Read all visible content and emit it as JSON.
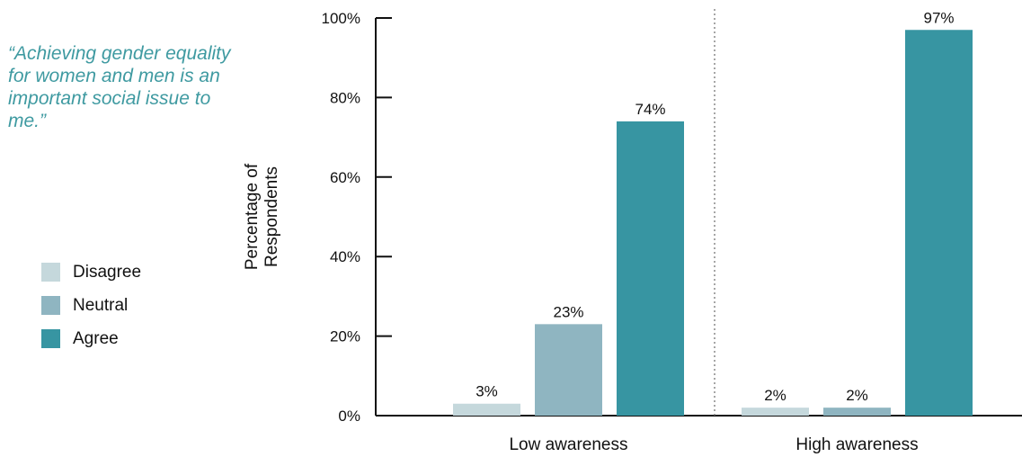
{
  "quote": "“Achieving gender equality for women and men is an important social issue to me.”",
  "legend": [
    {
      "label": "Disagree",
      "color": "#c5d8dc"
    },
    {
      "label": "Neutral",
      "color": "#8fb5c1"
    },
    {
      "label": "Agree",
      "color": "#3795a2"
    }
  ],
  "chart_data": {
    "type": "bar",
    "categories": [
      "Low awareness",
      "High awareness"
    ],
    "series": [
      {
        "name": "Disagree",
        "values": [
          3,
          2
        ],
        "labels": [
          "3%",
          "2%"
        ],
        "color": "#c5d8dc"
      },
      {
        "name": "Neutral",
        "values": [
          23,
          2
        ],
        "labels": [
          "23%",
          "2%"
        ],
        "color": "#8fb5c1"
      },
      {
        "name": "Agree",
        "values": [
          74,
          97
        ],
        "labels": [
          "74%",
          "97%"
        ],
        "color": "#3795a2"
      }
    ],
    "title": "",
    "xlabel": "",
    "ylabel": "Percentage of Respondents",
    "ylim": [
      0,
      100
    ],
    "yticks": [
      0,
      20,
      40,
      60,
      80,
      100
    ],
    "ytick_labels": [
      "0%",
      "20%",
      "40%",
      "60%",
      "80%",
      "100%"
    ],
    "grid": false,
    "legend_position": "left"
  }
}
